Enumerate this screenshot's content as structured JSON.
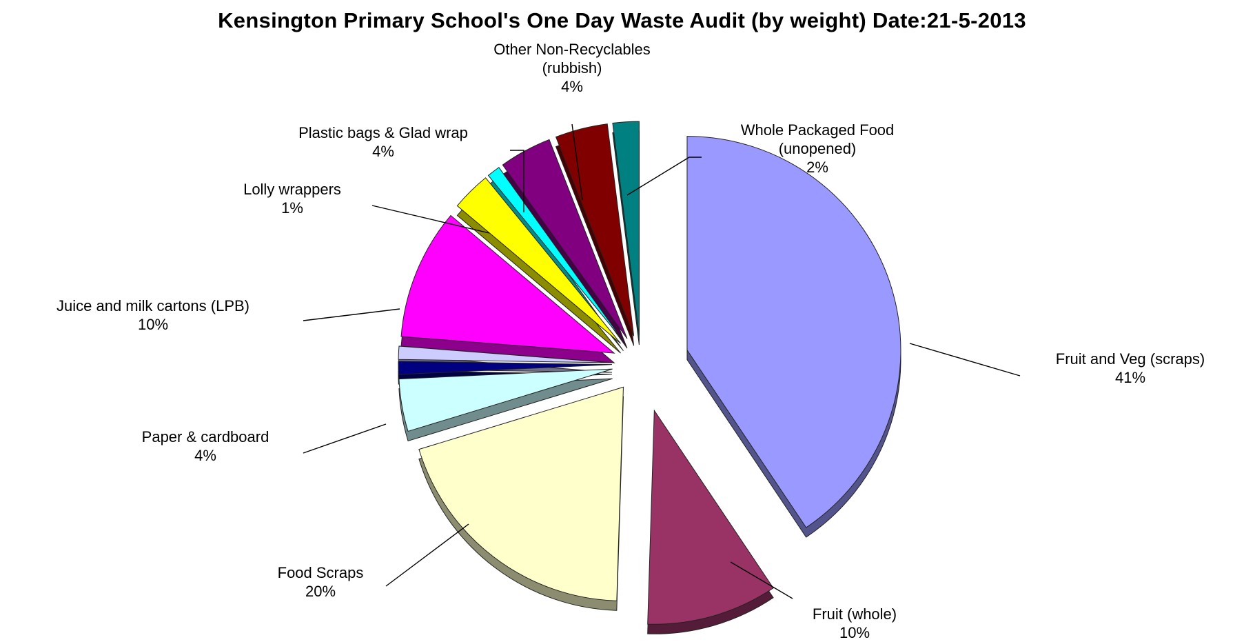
{
  "chart_data": {
    "type": "pie",
    "title": "Kensington Primary School's One Day Waste Audit (by weight) Date:21-5-2013",
    "exploded": true,
    "three_d": true,
    "slices": [
      {
        "name": "Fruit and Veg (scraps)",
        "value": 41,
        "percent_label": "41%",
        "color": "#9999ff"
      },
      {
        "name": "Fruit (whole)",
        "value": 10,
        "percent_label": "10%",
        "color": "#993366"
      },
      {
        "name": "Food Scraps",
        "value": 20,
        "percent_label": "20%",
        "color": "#ffffcc"
      },
      {
        "name": "Paper & cardboard",
        "value": 4,
        "percent_label": "4%",
        "color": "#ccffff"
      },
      {
        "name": "",
        "value": 1,
        "percent_label": "",
        "color": "#000080"
      },
      {
        "name": "",
        "value": 1,
        "percent_label": "",
        "color": "#ccccff"
      },
      {
        "name": "Juice and milk cartons (LPB)",
        "value": 10,
        "percent_label": "10%",
        "color": "#ff00ff"
      },
      {
        "name": "",
        "value": 3,
        "percent_label": "",
        "color": "#ffff00"
      },
      {
        "name": "Lolly wrappers",
        "value": 1,
        "percent_label": "1%",
        "color": "#00ffff"
      },
      {
        "name": "Plastic bags & Glad wrap",
        "value": 4,
        "percent_label": "4%",
        "color": "#800080"
      },
      {
        "name": "Other Non-Recyclables (rubbish)",
        "value": 4,
        "percent_label": "4%",
        "color": "#800000"
      },
      {
        "name": "Whole Packaged Food (unopened)",
        "value": 2,
        "percent_label": "2%",
        "color": "#008080"
      }
    ]
  }
}
